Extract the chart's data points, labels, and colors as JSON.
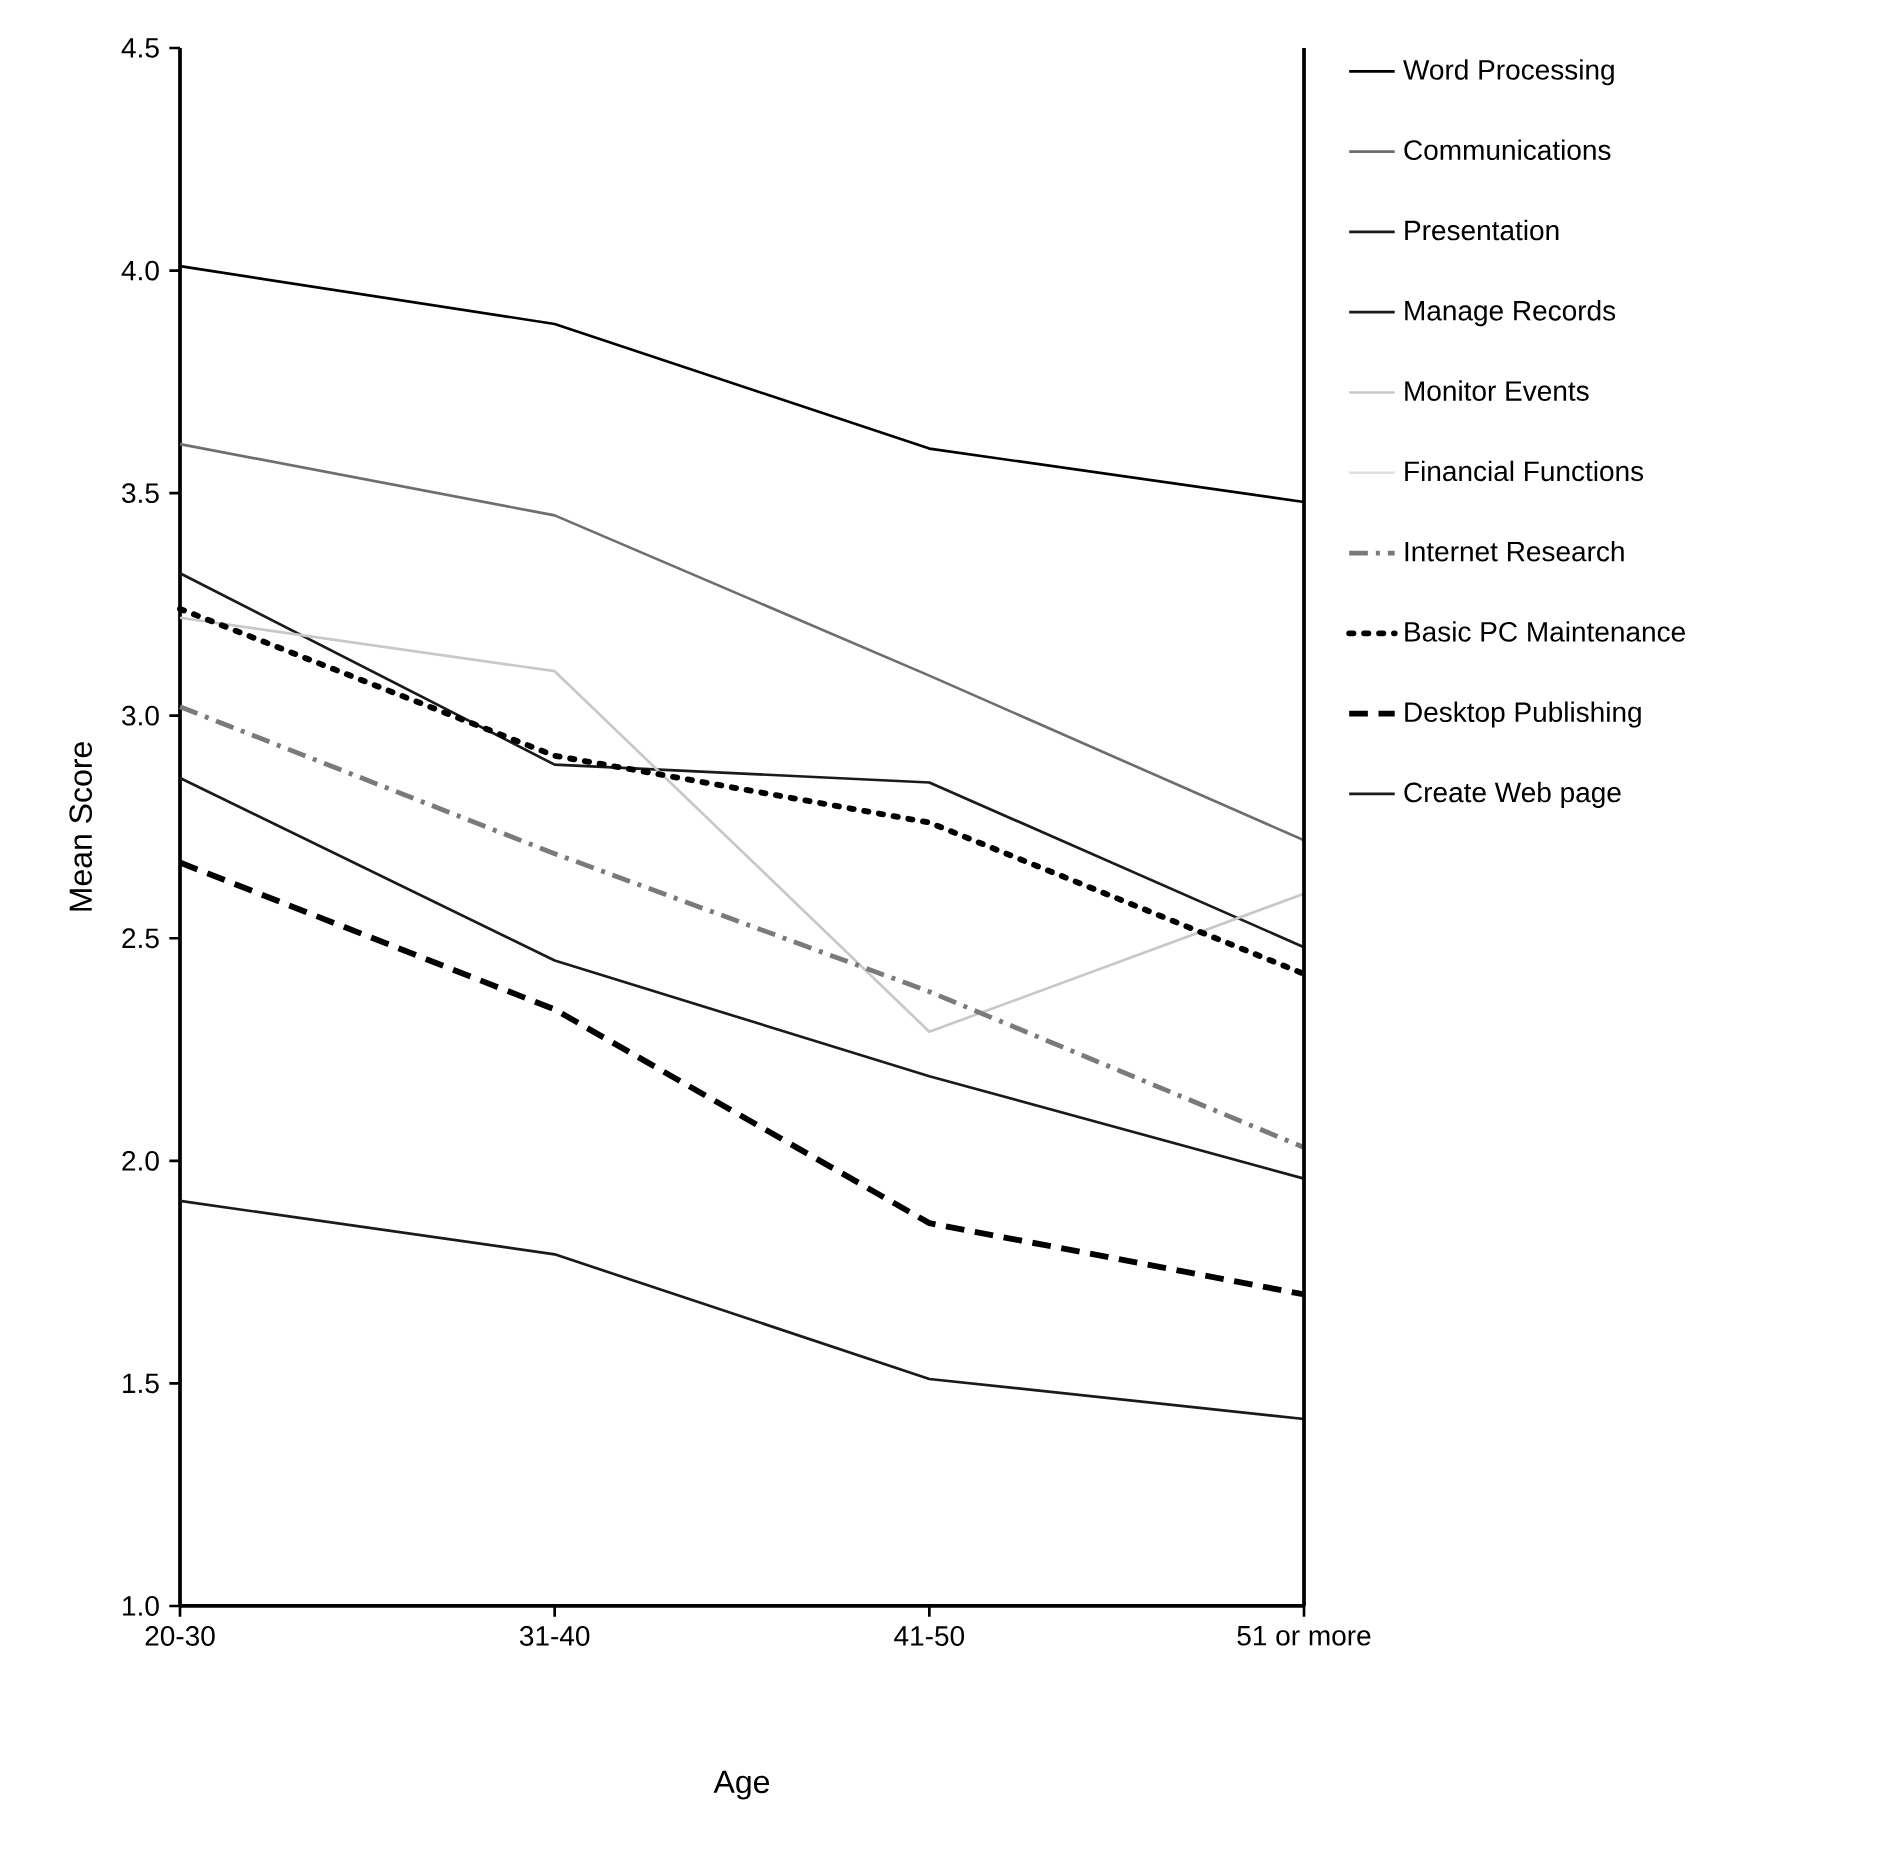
{
  "chart_data": {
    "type": "line",
    "xlabel": "Age",
    "ylabel": "Mean Score",
    "categories": [
      "20-30",
      "31-40",
      "41-50",
      "51 or more"
    ],
    "ylim": [
      1,
      4.5
    ],
    "yticks": [
      {
        "value": 1,
        "label": "1.0"
      },
      {
        "value": 1.5,
        "label": "1.5"
      },
      {
        "value": 2,
        "label": "2.0"
      },
      {
        "value": 2.5,
        "label": "2.5"
      },
      {
        "value": 3,
        "label": "3.0"
      },
      {
        "value": 3.5,
        "label": "3.5"
      },
      {
        "value": 4,
        "label": "4.0"
      },
      {
        "value": 4.5,
        "label": "4.5"
      }
    ],
    "legend": "right",
    "grid": false,
    "marker": "none",
    "series": [
      {
        "name": "Word Processing",
        "color": "#000000",
        "line_style": "solid",
        "values": [
          4.01,
          3.88,
          3.6,
          3.48
        ]
      },
      {
        "name": "Communications",
        "color": "#6e6e6e",
        "line_style": "solid",
        "values": [
          3.61,
          3.45,
          3.09,
          2.72
        ]
      },
      {
        "name": "Presentation",
        "color": "#1a1a1a",
        "line_style": "solid",
        "values": [
          3.32,
          2.89,
          2.85,
          2.48
        ]
      },
      {
        "name": "Manage Records",
        "color": "#1a1a1a",
        "line_style": "solid",
        "values": [
          2.86,
          2.45,
          2.19,
          1.96
        ]
      },
      {
        "name": "Monitor Events",
        "color": "#c8c8c8",
        "line_style": "solid",
        "values": [
          3.22,
          3.1,
          2.29,
          2.6
        ]
      },
      {
        "name": "Financial Functions",
        "color": "#e0e0e0",
        "line_style": "solid",
        "values": [
          null,
          null,
          null,
          null
        ]
      },
      {
        "name": "Internet Research",
        "color": "#7a7a7a",
        "line_style": "dashdot",
        "values": [
          3.02,
          2.69,
          2.38,
          2.03
        ]
      },
      {
        "name": "Basic PC Maintenance",
        "color": "#000000",
        "line_style": "dotted",
        "values": [
          3.24,
          2.91,
          2.76,
          2.42
        ]
      },
      {
        "name": "Desktop Publishing",
        "color": "#000000",
        "line_style": "dashed",
        "values": [
          2.67,
          2.34,
          1.86,
          1.7
        ]
      },
      {
        "name": "Create Web page",
        "color": "#1a1a1a",
        "line_style": "solid",
        "values": [
          1.91,
          1.79,
          1.51,
          1.42
        ]
      }
    ]
  }
}
